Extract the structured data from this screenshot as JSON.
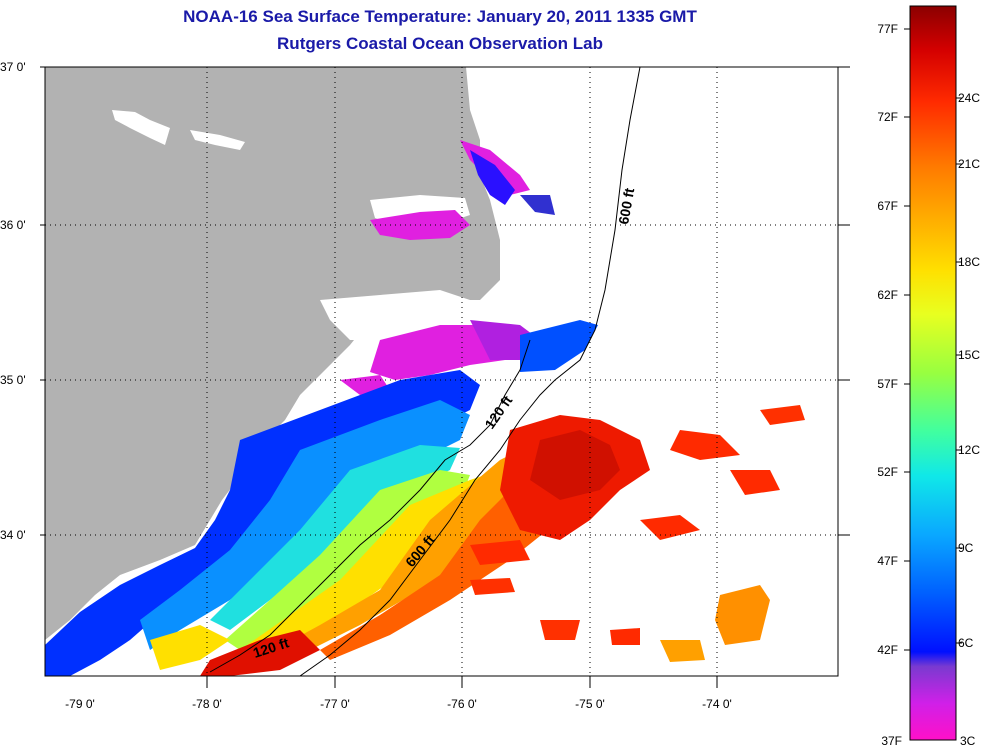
{
  "title": "NOAA-16 Sea Surface Temperature:  January 20, 2011 1335 GMT",
  "subtitle": "Rutgers Coastal Ocean Observation Lab",
  "lat_ticks": [
    "37 0'",
    "36 0'",
    "35 0'",
    "34 0'"
  ],
  "lon_ticks": [
    "-79 0'",
    "-78 0'",
    "-77 0'",
    "-76 0'",
    "-75 0'",
    "-74 0'"
  ],
  "contours": [
    "600 ft",
    "120 ft",
    "600 ft",
    "120 ft"
  ],
  "colorbar": {
    "fahrenheit": [
      "77F",
      "72F",
      "67F",
      "62F",
      "57F",
      "52F",
      "47F",
      "42F",
      "37F"
    ],
    "celsius": [
      "24C",
      "21C",
      "18C",
      "15C",
      "12C",
      "9C",
      "6C",
      "3C"
    ],
    "gradient": [
      "#8b0000",
      "#d40000",
      "#ff2a00",
      "#ff7b00",
      "#ffb400",
      "#ffe000",
      "#e8ff20",
      "#98ff40",
      "#40ffa0",
      "#10e8e8",
      "#0aa8ff",
      "#0060ff",
      "#0010ff",
      "#7a3ad0",
      "#d020e8",
      "#ff10c8"
    ]
  },
  "colors": {
    "land": "#b2b2b2",
    "title": "#1a1aa8",
    "coastline": "#000000"
  }
}
